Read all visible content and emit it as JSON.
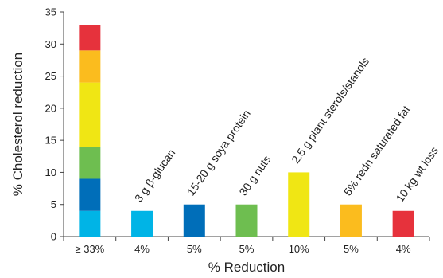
{
  "chart_data": {
    "type": "bar",
    "title": "",
    "xlabel": "% Reduction",
    "ylabel": "% Cholesterol reduction",
    "ylim": [
      0,
      35
    ],
    "yticks": [
      0,
      5,
      10,
      15,
      20,
      25,
      30,
      35
    ],
    "grid": false,
    "legend": "none",
    "categories": [
      "≥ 33%",
      "4%",
      "5%",
      "5%",
      "10%",
      "5%",
      "4%"
    ],
    "bar_labels": [
      "",
      "3 g β-glucan",
      "15-20 g soya protein",
      "30 g nuts",
      "2.5 g plant sterols/stanols",
      "5% redn saturated fat",
      "10 kg wt loss"
    ],
    "values": [
      33,
      4,
      5,
      5,
      10,
      5,
      4
    ],
    "colors": [
      "#e6323c",
      "#00b4e6",
      "#006eb9",
      "#6ebe50",
      "#f0e614",
      "#fbbc1e",
      "#e6323c"
    ],
    "stacked_total": {
      "category": "≥ 33%",
      "segments": [
        {
          "value": 4,
          "color": "#00b4e6"
        },
        {
          "value": 5,
          "color": "#006eb9"
        },
        {
          "value": 5,
          "color": "#6ebe50"
        },
        {
          "value": 10,
          "color": "#f0e614"
        },
        {
          "value": 5,
          "color": "#fbbc1e"
        },
        {
          "value": 4,
          "color": "#e6323c"
        }
      ]
    }
  }
}
